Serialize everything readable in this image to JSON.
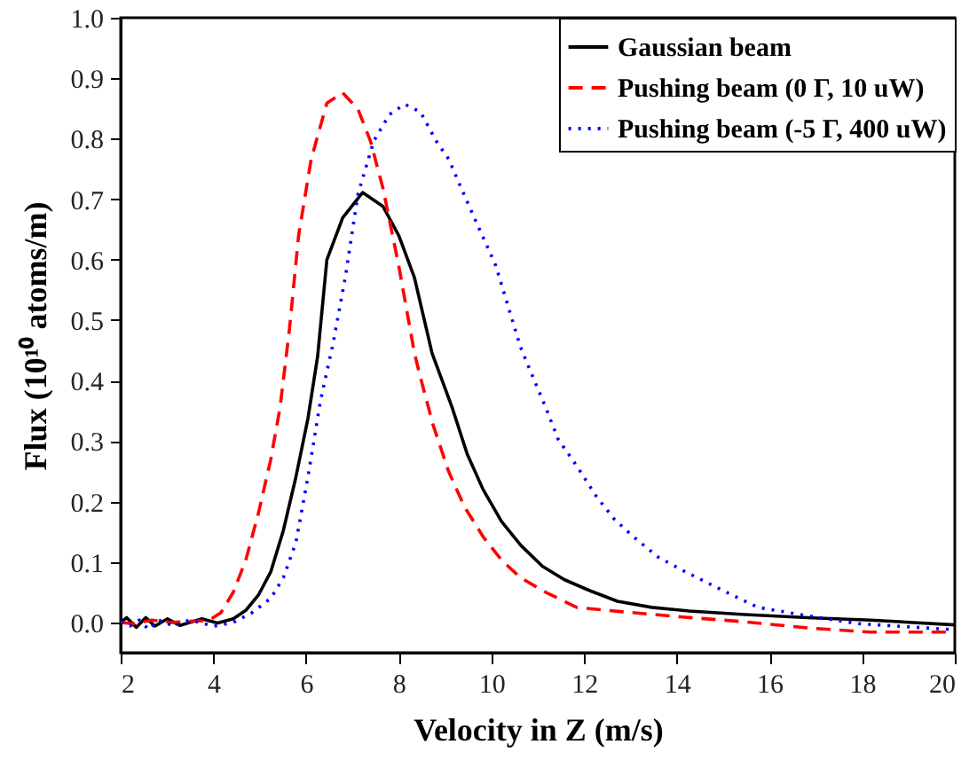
{
  "chart_data": {
    "type": "line",
    "xlabel": "Velocity in Z (m/s)",
    "ylabel": "Flux (10¹⁰ atoms/m)",
    "xlim": [
      2,
      20
    ],
    "ylim": [
      -0.05,
      1.0
    ],
    "xticks": [
      2,
      4,
      6,
      8,
      10,
      12,
      14,
      16,
      18,
      20
    ],
    "yticks": [
      {
        "value": 0,
        "label": "0.0"
      },
      0.1,
      0.2,
      0.3,
      0.4,
      0.5,
      0.6,
      0.7,
      0.8,
      0.9,
      {
        "value": 1,
        "label": "1.0"
      }
    ],
    "legend": "top right",
    "series": [
      {
        "name": "Gaussian beam",
        "color": "#000000",
        "line_style": "solid",
        "x": [
          2,
          2.13,
          2.34,
          2.54,
          2.74,
          3.01,
          3.28,
          3.75,
          4.09,
          4.43,
          4.7,
          4.97,
          5.24,
          5.51,
          5.78,
          6.04,
          6.25,
          6.45,
          6.79,
          7.22,
          7.66,
          8.0,
          8.34,
          8.72,
          9.15,
          9.48,
          9.82,
          10.22,
          10.63,
          11.1,
          11.57,
          12.11,
          12.72,
          13.46,
          14.27,
          15.48,
          16.83,
          18.18,
          20
        ],
        "values": [
          0,
          0.008,
          -0.008,
          0.008,
          -0.006,
          0.006,
          -0.005,
          0.006,
          -0.001,
          0.006,
          0.02,
          0.045,
          0.084,
          0.152,
          0.24,
          0.337,
          0.44,
          0.6,
          0.669,
          0.711,
          0.688,
          0.64,
          0.57,
          0.445,
          0.356,
          0.278,
          0.22,
          0.167,
          0.128,
          0.093,
          0.071,
          0.053,
          0.035,
          0.025,
          0.019,
          0.013,
          0.008,
          0.004,
          -0.004
        ]
      },
      {
        "name": "Pushing beam (0 Γ, 10 uW)",
        "color": "#ff0000",
        "line_style": "dashed",
        "x": [
          2,
          2.27,
          2.67,
          3.08,
          3.48,
          3.89,
          4.16,
          4.43,
          4.7,
          4.97,
          5.24,
          5.44,
          5.64,
          5.84,
          6.11,
          6.45,
          6.79,
          7.12,
          7.39,
          7.66,
          8.0,
          8.34,
          8.47,
          8.74,
          9.08,
          9.42,
          9.82,
          10.22,
          10.63,
          11.17,
          11.84,
          12.79,
          14.13,
          15.48,
          16.83,
          18.18,
          20
        ],
        "values": [
          0,
          -0.002,
          0.004,
          0,
          0.002,
          0.003,
          0.016,
          0.05,
          0.103,
          0.18,
          0.27,
          0.356,
          0.484,
          0.64,
          0.766,
          0.859,
          0.876,
          0.849,
          0.796,
          0.718,
          0.59,
          0.445,
          0.405,
          0.327,
          0.249,
          0.191,
          0.142,
          0.103,
          0.074,
          0.05,
          0.025,
          0.018,
          0.009,
          0.001,
          -0.009,
          -0.016,
          -0.016
        ]
      },
      {
        "name": "Pushing beam (-5 Γ, 400 uW)",
        "color": "#0000ff",
        "line_style": "dotted",
        "x": [
          2,
          2.2,
          2.4,
          2.61,
          2.81,
          3.15,
          3.48,
          4.02,
          4.43,
          4.83,
          5.24,
          5.51,
          5.78,
          6.04,
          6.31,
          6.58,
          6.85,
          7.12,
          7.46,
          7.8,
          8.13,
          8.47,
          8.81,
          9.08,
          9.35,
          9.69,
          10.09,
          10.63,
          10.9,
          11.17,
          11.44,
          11.84,
          12.25,
          12.65,
          13.06,
          13.6,
          14.13,
          14.94,
          15.75,
          16.83,
          17.91,
          20
        ],
        "values": [
          0,
          -0.006,
          0.004,
          -0.012,
          0.004,
          -0.006,
          0.004,
          -0.006,
          0,
          0.016,
          0.04,
          0.074,
          0.132,
          0.24,
          0.366,
          0.46,
          0.572,
          0.708,
          0.796,
          0.84,
          0.857,
          0.844,
          0.796,
          0.766,
          0.718,
          0.659,
          0.591,
          0.455,
          0.405,
          0.356,
          0.303,
          0.259,
          0.21,
          0.171,
          0.142,
          0.108,
          0.086,
          0.055,
          0.025,
          0.011,
          -0.002,
          -0.012
        ]
      }
    ]
  }
}
